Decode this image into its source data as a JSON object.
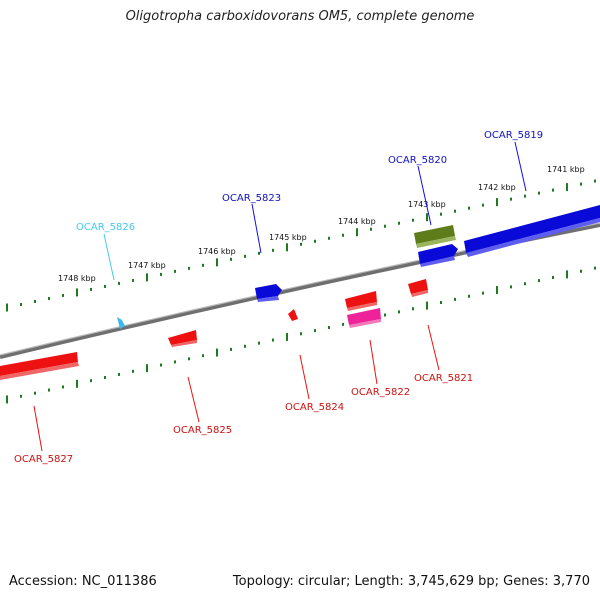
{
  "title": "Oligotropha carboxidovorans OM5, complete genome",
  "footer": {
    "accession": "Accession: NC_011386",
    "topology": "Topology: circular; Length: 3,745,629 bp; Genes: 3,770"
  },
  "colors": {
    "backbone": "#7a7a7a",
    "ticks": "#1f7a1f",
    "forward_gene": "#1010e0",
    "reverse_gene": "#ee1111",
    "rna_gene": "#44c8f0",
    "pseudo_gene": "#6b8a1e",
    "other_gene": "#ee2299"
  },
  "ruler": {
    "unit": "kbp",
    "labels": [
      "1748 kbp",
      "1747 kbp",
      "1746 kbp",
      "1745 kbp",
      "1744 kbp",
      "1743 kbp",
      "1742 kbp",
      "1741 kbp"
    ]
  },
  "genes": [
    {
      "label": "OCAR_5819",
      "strand": "forward",
      "color": "#1010e0"
    },
    {
      "label": "OCAR_5820",
      "strand": "forward",
      "color": "#1010e0"
    },
    {
      "label": "OCAR_5823",
      "strand": "forward",
      "color": "#1010e0"
    },
    {
      "label": "OCAR_5826",
      "strand": "forward",
      "color": "#44c8f0"
    },
    {
      "label": "OCAR_5821",
      "strand": "reverse",
      "color": "#ee1111"
    },
    {
      "label": "OCAR_5822",
      "strand": "reverse",
      "color": "#ee1111"
    },
    {
      "label": "OCAR_5824",
      "strand": "reverse",
      "color": "#ee1111"
    },
    {
      "label": "OCAR_5825",
      "strand": "reverse",
      "color": "#ee1111"
    },
    {
      "label": "OCAR_5827",
      "strand": "reverse",
      "color": "#ee1111"
    }
  ]
}
